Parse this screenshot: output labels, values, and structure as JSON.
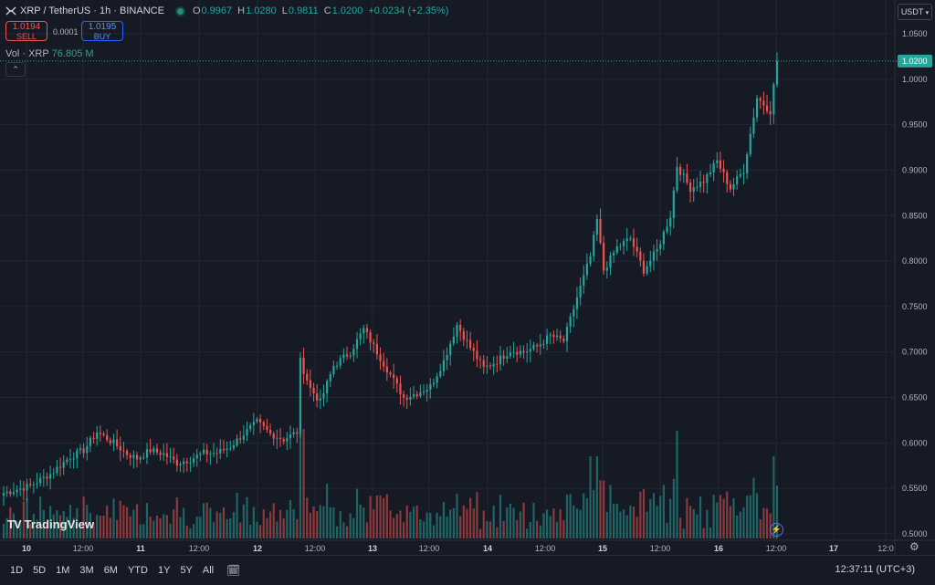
{
  "header": {
    "symbol": "XRP / TetherUS · 1h · BINANCE",
    "ohlc": [
      {
        "k": "O",
        "v": "0.9967"
      },
      {
        "k": "H",
        "v": "1.0280"
      },
      {
        "k": "L",
        "v": "0.9811"
      },
      {
        "k": "C",
        "v": "1.0200"
      }
    ],
    "change": "+0.0234 (+2.35%)",
    "sell_price": "1.0194",
    "sell_label": "SELL",
    "buy_price": "1.0195",
    "buy_label": "BUY",
    "spread": "0.0001",
    "volume_label": "Vol · XRP",
    "volume_value": "76.805 M",
    "currency": "USDT"
  },
  "bottom": {
    "ranges": [
      "1D",
      "5D",
      "1M",
      "3M",
      "6M",
      "YTD",
      "1Y",
      "5Y",
      "All"
    ],
    "clock": "12:37:11 (UTC+3)"
  },
  "logo": "TradingView",
  "colors": {
    "up": "#26a69a",
    "down": "#ef5350",
    "background": "#161a25",
    "grid": "#232733",
    "last_price": "#26a69a"
  },
  "icons": [
    "xrp-logo-icon",
    "calendar-icon",
    "gear-icon",
    "lightning-icon",
    "chevron-up-icon",
    "chevron-down-icon"
  ],
  "chart_data": {
    "type": "candlestick",
    "last_price": "1.0200",
    "y_ticks": [
      "1.0500",
      "1.0000",
      "0.9500",
      "0.9000",
      "0.8500",
      "0.8000",
      "0.7500",
      "0.7000",
      "0.6500",
      "0.6000",
      "0.5500",
      "0.5000"
    ],
    "x_ticks": [
      "10",
      "12:00",
      "11",
      "12:00",
      "12",
      "12:00",
      "13",
      "12:00",
      "14",
      "12:00",
      "15",
      "12:00",
      "16",
      "12:00",
      "17",
      "12:0"
    ],
    "ylim": [
      0.49,
      1.065
    ],
    "anchors": [
      [
        0,
        0.545
      ],
      [
        8,
        0.553
      ],
      [
        14,
        0.566
      ],
      [
        20,
        0.585
      ],
      [
        24,
        0.592
      ],
      [
        28,
        0.612
      ],
      [
        33,
        0.6
      ],
      [
        37,
        0.588
      ],
      [
        40,
        0.583
      ],
      [
        44,
        0.592
      ],
      [
        48,
        0.588
      ],
      [
        52,
        0.578
      ],
      [
        56,
        0.582
      ],
      [
        60,
        0.589
      ],
      [
        64,
        0.589
      ],
      [
        68,
        0.596
      ],
      [
        72,
        0.61
      ],
      [
        76,
        0.623
      ],
      [
        80,
        0.61
      ],
      [
        84,
        0.604
      ],
      [
        88,
        0.612
      ],
      [
        89,
        0.69
      ],
      [
        92,
        0.66
      ],
      [
        95,
        0.645
      ],
      [
        99,
        0.685
      ],
      [
        104,
        0.7
      ],
      [
        108,
        0.725
      ],
      [
        112,
        0.7
      ],
      [
        116,
        0.675
      ],
      [
        120,
        0.65
      ],
      [
        124,
        0.655
      ],
      [
        128,
        0.662
      ],
      [
        132,
        0.69
      ],
      [
        136,
        0.73
      ],
      [
        140,
        0.705
      ],
      [
        144,
        0.682
      ],
      [
        148,
        0.69
      ],
      [
        152,
        0.702
      ],
      [
        156,
        0.7
      ],
      [
        160,
        0.706
      ],
      [
        164,
        0.718
      ],
      [
        168,
        0.712
      ],
      [
        172,
        0.76
      ],
      [
        176,
        0.805
      ],
      [
        178,
        0.845
      ],
      [
        180,
        0.79
      ],
      [
        184,
        0.815
      ],
      [
        188,
        0.825
      ],
      [
        192,
        0.79
      ],
      [
        196,
        0.812
      ],
      [
        200,
        0.85
      ],
      [
        202,
        0.905
      ],
      [
        206,
        0.88
      ],
      [
        210,
        0.888
      ],
      [
        214,
        0.91
      ],
      [
        218,
        0.88
      ],
      [
        222,
        0.9
      ],
      [
        226,
        0.98
      ],
      [
        230,
        0.965
      ],
      [
        232,
        1.02
      ]
    ],
    "volume_note": "volume bars shown below price, colored by candle direction"
  }
}
